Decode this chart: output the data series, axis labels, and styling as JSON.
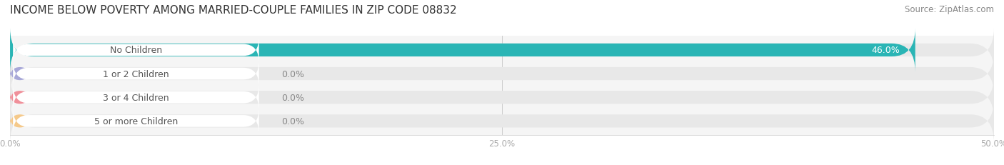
{
  "title": "INCOME BELOW POVERTY AMONG MARRIED-COUPLE FAMILIES IN ZIP CODE 08832",
  "source": "Source: ZipAtlas.com",
  "categories": [
    "No Children",
    "1 or 2 Children",
    "3 or 4 Children",
    "5 or more Children"
  ],
  "values": [
    46.0,
    0.0,
    0.0,
    0.0
  ],
  "bar_colors": [
    "#2ab5b5",
    "#a8a8d8",
    "#f0909a",
    "#f5c98a"
  ],
  "xlim": [
    0,
    50
  ],
  "xtick_labels": [
    "0.0%",
    "25.0%",
    "50.0%"
  ],
  "bg_color": "#f5f5f5",
  "bar_bg_color": "#e8e8e8",
  "title_fontsize": 11,
  "source_fontsize": 8.5,
  "label_fontsize": 9,
  "value_fontsize": 9,
  "bar_height": 0.55
}
